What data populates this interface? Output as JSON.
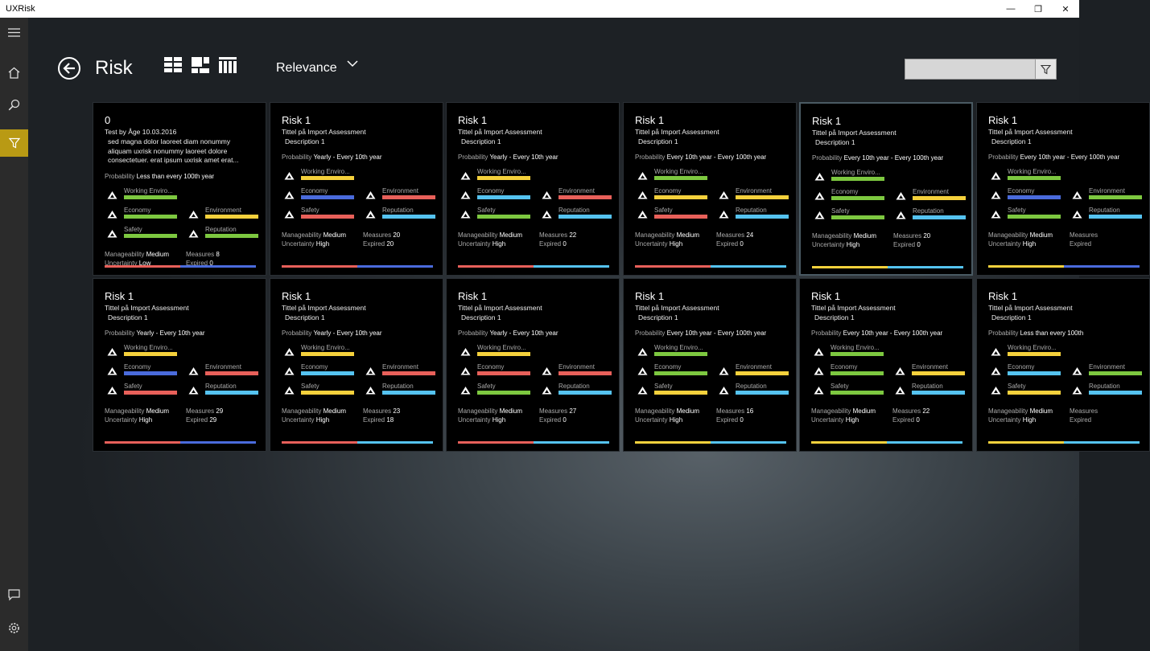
{
  "window": {
    "title": "UXRisk",
    "min": "—",
    "max": "❐",
    "close": "✕"
  },
  "page": {
    "title": "Risk",
    "sort_label": "Relevance",
    "search_placeholder": ""
  },
  "colors": {
    "green": "#7dc840",
    "yellow": "#f5d13c",
    "red": "#e8605a",
    "cyan": "#55c3f0",
    "blue": "#4a6bdc",
    "accent": "#b99a14"
  },
  "labels": {
    "probability": "Probability",
    "manageability": "Manageability",
    "uncertainty": "Uncertainty",
    "measures": "Measures",
    "expired": "Expired",
    "working": "Working Enviro...",
    "economy": "Economy",
    "environment": "Environment",
    "safety": "Safety",
    "reputation": "Reputation"
  },
  "first_card": {
    "name": "0",
    "subtitle": "Test by Åge 10.03.2016",
    "body": "sed magna dolor laoreet diam nonummy aliquam uxrisk nonummy laoreet dolore consectetuer. erat ipsum uxrisk amet erat...",
    "probability": "Less than every 100th year",
    "working": "green",
    "economy": "green",
    "environment": "yellow",
    "safety": "green",
    "reputation": "green",
    "manageability": "Medium",
    "uncertainty": "Low",
    "measures": "8",
    "expired": "0",
    "status": [
      "red",
      "blue"
    ]
  },
  "cards": [
    {
      "name": "Risk 1",
      "subtitle": "Tittel på Import Assessment",
      "desc": "Description 1",
      "probability": "Yearly - Every 10th year",
      "working": "yellow",
      "economy": "blue",
      "environment": "red",
      "safety": "red",
      "reputation": "cyan",
      "manageability": "Medium",
      "uncertainty": "High",
      "measures": "20",
      "expired": "20",
      "status": [
        "red",
        "blue"
      ]
    },
    {
      "name": "Risk 1",
      "subtitle": "Tittel på Import Assessment",
      "desc": "Description 1",
      "probability": "Yearly - Every 10th year",
      "working": "yellow",
      "economy": "cyan",
      "environment": "red",
      "safety": "green",
      "reputation": "cyan",
      "manageability": "Medium",
      "uncertainty": "High",
      "measures": "22",
      "expired": "0",
      "status": [
        "red",
        "cyan"
      ]
    },
    {
      "name": "Risk 1",
      "subtitle": "Tittel på Import Assessment",
      "desc": "Description 1",
      "probability": "Every 10th year - Every 100th year",
      "working": "green",
      "economy": "yellow",
      "environment": "yellow",
      "safety": "red",
      "reputation": "cyan",
      "manageability": "Medium",
      "uncertainty": "High",
      "measures": "24",
      "expired": "0",
      "status": [
        "red",
        "cyan"
      ]
    },
    {
      "name": "Risk 1",
      "subtitle": "Tittel på Import Assessment",
      "desc": "Description 1",
      "probability": "Every 10th year - Every 100th year",
      "working": "green",
      "economy": "green",
      "environment": "yellow",
      "safety": "green",
      "reputation": "cyan",
      "manageability": "Medium",
      "uncertainty": "High",
      "measures": "20",
      "expired": "0",
      "status": [
        "yellow",
        "cyan"
      ],
      "selected": true
    },
    {
      "name": "Risk 1",
      "subtitle": "Tittel på Import Assessment",
      "desc": "Description 1",
      "probability": "Every 10th year - Every 100th year",
      "working": "green",
      "economy": "blue",
      "environment": "green",
      "safety": "green",
      "reputation": "cyan",
      "manageability": "Medium",
      "uncertainty": "High",
      "measures": "",
      "expired": "",
      "status": [
        "yellow",
        "blue"
      ]
    },
    {
      "name": "Risk 1",
      "subtitle": "Tittel på Import Assessment",
      "desc": "Description 1",
      "probability": "Yearly - Every 10th year",
      "working": "yellow",
      "economy": "blue",
      "environment": "red",
      "safety": "red",
      "reputation": "cyan",
      "manageability": "Medium",
      "uncertainty": "High",
      "measures": "29",
      "expired": "29",
      "status": [
        "red",
        "blue"
      ]
    },
    {
      "name": "Risk 1",
      "subtitle": "Tittel på Import Assessment",
      "desc": "Description 1",
      "probability": "Yearly - Every 10th year",
      "working": "yellow",
      "economy": "cyan",
      "environment": "red",
      "safety": "yellow",
      "reputation": "cyan",
      "manageability": "Medium",
      "uncertainty": "High",
      "measures": "23",
      "expired": "18",
      "status": [
        "red",
        "cyan"
      ]
    },
    {
      "name": "Risk 1",
      "subtitle": "Tittel på Import Assessment",
      "desc": "Description 1",
      "probability": "Yearly - Every 10th year",
      "working": "yellow",
      "economy": "red",
      "environment": "red",
      "safety": "green",
      "reputation": "cyan",
      "manageability": "Medium",
      "uncertainty": "High",
      "measures": "27",
      "expired": "0",
      "status": [
        "red",
        "cyan"
      ]
    },
    {
      "name": "Risk 1",
      "subtitle": "Tittel på Import Assessment",
      "desc": "Description 1",
      "probability": "Every 10th year - Every 100th year",
      "working": "green",
      "economy": "green",
      "environment": "yellow",
      "safety": "yellow",
      "reputation": "cyan",
      "manageability": "Medium",
      "uncertainty": "High",
      "measures": "16",
      "expired": "0",
      "status": [
        "yellow",
        "cyan"
      ]
    },
    {
      "name": "Risk 1",
      "subtitle": "Tittel på Import Assessment",
      "desc": "Description 1",
      "probability": "Every 10th year - Every 100th year",
      "working": "green",
      "economy": "green",
      "environment": "yellow",
      "safety": "green",
      "reputation": "cyan",
      "manageability": "Medium",
      "uncertainty": "High",
      "measures": "22",
      "expired": "0",
      "status": [
        "yellow",
        "cyan"
      ]
    },
    {
      "name": "Risk 1",
      "subtitle": "Tittel på Import Assessment",
      "desc": "Description 1",
      "probability": "Less than every 100th",
      "working": "yellow",
      "economy": "cyan",
      "environment": "green",
      "safety": "yellow",
      "reputation": "cyan",
      "manageability": "Medium",
      "uncertainty": "High",
      "measures": "",
      "expired": "",
      "status": [
        "yellow",
        "cyan"
      ]
    }
  ]
}
